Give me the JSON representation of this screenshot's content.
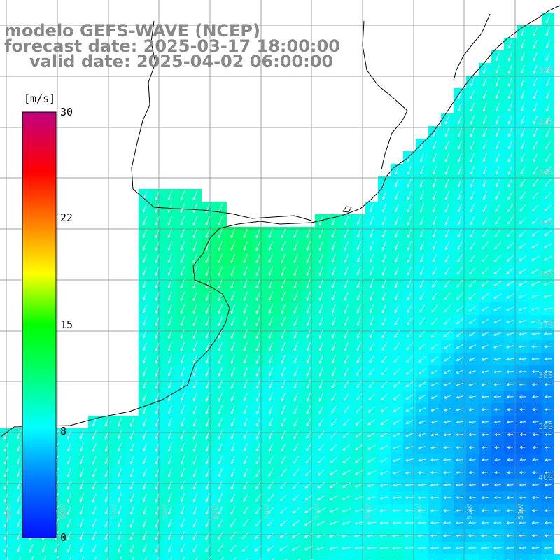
{
  "title": {
    "line1": "modelo GEFS-WAVE (NCEP)",
    "line2": "forecast date: 2025-03-17 18:00:00",
    "line3": "valid date: 2025-04-02 06:00:00"
  },
  "colorbar": {
    "unit": "[m/s]",
    "ticks": [
      "30",
      "22",
      "15",
      "8",
      "0"
    ],
    "tick_values": [
      30,
      22,
      15,
      8,
      0
    ],
    "min": 0,
    "max": 30,
    "colors": [
      "#0010ff",
      "#0080ff",
      "#00ffff",
      "#00ff40",
      "#00ff00",
      "#ffff00",
      "#ff8000",
      "#ff0000",
      "#c00080"
    ]
  },
  "grid": {
    "lat_labels": [
      "32S",
      "33S",
      "34S",
      "35S",
      "36S",
      "37S",
      "38S",
      "39S",
      "40S"
    ],
    "lon_labels": [
      "61W",
      "60W",
      "59W",
      "58W",
      "57W",
      "56W",
      "55W",
      "54W",
      "53W",
      "52W",
      "51W"
    ]
  },
  "map": {
    "variable": "wind speed",
    "colors": {
      "land": "#ffffff",
      "coast": "#000000",
      "grid": "#808080",
      "arrows": "#ffffff"
    }
  }
}
